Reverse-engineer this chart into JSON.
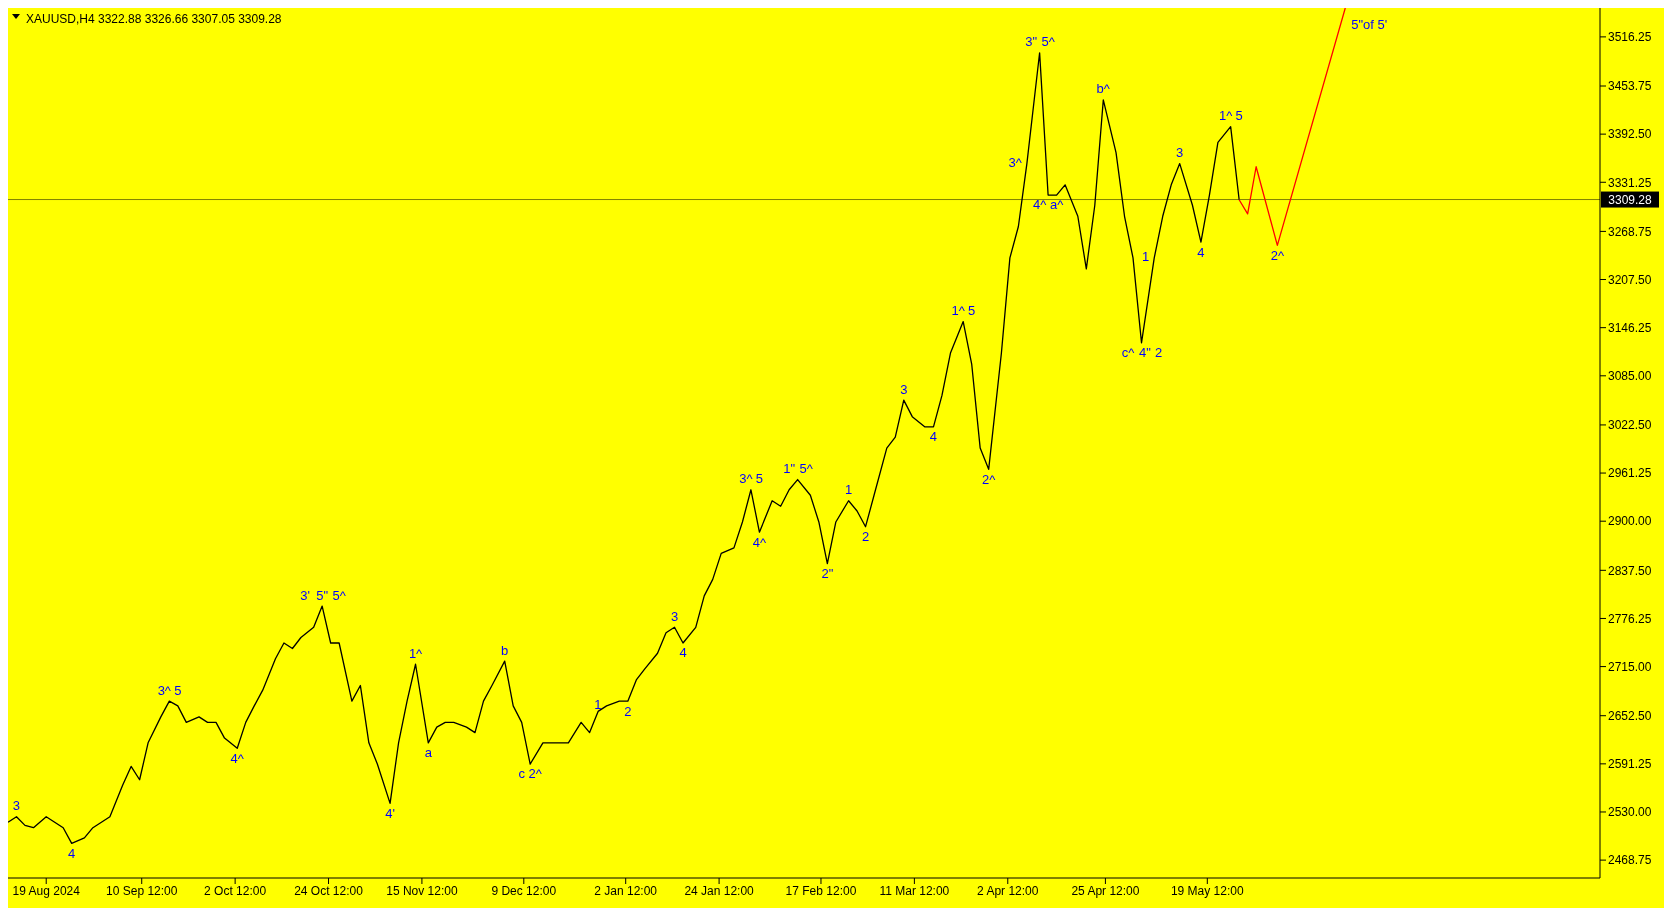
{
  "chart_data": {
    "type": "line",
    "title": "XAUUSD,H4  3322.88 3326.66 3307.05 3309.28",
    "x": [
      "2024-08-10",
      "2024-08-12",
      "2024-08-14",
      "2024-08-16",
      "2024-08-19",
      "2024-08-21",
      "2024-08-23",
      "2024-08-25",
      "2024-08-28",
      "2024-08-30",
      "2024-09-01",
      "2024-09-03",
      "2024-09-06",
      "2024-09-08",
      "2024-09-10",
      "2024-09-12",
      "2024-09-15",
      "2024-09-17",
      "2024-09-19",
      "2024-09-21",
      "2024-09-24",
      "2024-09-26",
      "2024-09-28",
      "2024-09-30",
      "2024-10-03",
      "2024-10-05",
      "2024-10-07",
      "2024-10-09",
      "2024-10-12",
      "2024-10-14",
      "2024-10-16",
      "2024-10-18",
      "2024-10-21",
      "2024-10-23",
      "2024-10-25",
      "2024-10-27",
      "2024-10-30",
      "2024-11-01",
      "2024-11-03",
      "2024-11-05",
      "2024-11-08",
      "2024-11-10",
      "2024-11-12",
      "2024-11-14",
      "2024-11-17",
      "2024-11-19",
      "2024-11-21",
      "2024-11-23",
      "2024-11-26",
      "2024-11-28",
      "2024-11-30",
      "2024-12-02",
      "2024-12-05",
      "2024-12-07",
      "2024-12-09",
      "2024-12-11",
      "2024-12-14",
      "2024-12-16",
      "2024-12-18",
      "2024-12-20",
      "2024-12-23",
      "2024-12-25",
      "2024-12-27",
      "2024-12-29",
      "2025-01-01",
      "2025-01-03",
      "2025-01-05",
      "2025-01-07",
      "2025-01-10",
      "2025-01-12",
      "2025-01-14",
      "2025-01-16",
      "2025-01-19",
      "2025-01-21",
      "2025-01-23",
      "2025-01-25",
      "2025-01-28",
      "2025-01-30",
      "2025-02-01",
      "2025-02-03",
      "2025-02-06",
      "2025-02-08",
      "2025-02-10",
      "2025-02-12",
      "2025-02-15",
      "2025-02-17",
      "2025-02-19",
      "2025-02-21",
      "2025-02-24",
      "2025-02-26",
      "2025-02-28",
      "2025-03-02",
      "2025-03-05",
      "2025-03-07",
      "2025-03-09",
      "2025-03-11",
      "2025-03-14",
      "2025-03-16",
      "2025-03-18",
      "2025-03-20",
      "2025-03-23",
      "2025-03-25",
      "2025-03-27",
      "2025-03-29",
      "2025-04-01",
      "2025-04-03",
      "2025-04-05",
      "2025-04-07",
      "2025-04-10",
      "2025-04-12",
      "2025-04-14",
      "2025-04-16",
      "2025-04-19",
      "2025-04-21",
      "2025-04-23",
      "2025-04-25",
      "2025-04-28",
      "2025-04-30",
      "2025-05-02",
      "2025-05-04",
      "2025-05-07",
      "2025-05-09",
      "2025-05-11",
      "2025-05-13",
      "2025-05-16",
      "2025-05-18",
      "2025-05-20",
      "2025-05-22",
      "2025-05-25",
      "2025-05-27"
    ],
    "series": [
      {
        "color": "#000000",
        "values": [
          2517,
          2524,
          2513,
          2510,
          2524,
          2517,
          2510,
          2490,
          2497,
          2510,
          2517,
          2524,
          2564,
          2588,
          2571,
          2618,
          2651,
          2671,
          2665,
          2644,
          2651,
          2644,
          2644,
          2624,
          2611,
          2644,
          2665,
          2685,
          2725,
          2745,
          2738,
          2752,
          2765,
          2792,
          2745,
          2745,
          2671,
          2691,
          2618,
          2591,
          2541,
          2618,
          2671,
          2718,
          2618,
          2638,
          2644,
          2644,
          2638,
          2631,
          2671,
          2691,
          2722,
          2665,
          2644,
          2591,
          2618,
          2618,
          2618,
          2618,
          2644,
          2631,
          2658,
          2665,
          2671,
          2671,
          2698,
          2712,
          2732,
          2758,
          2765,
          2745,
          2765,
          2805,
          2826,
          2859,
          2866,
          2899,
          2940,
          2886,
          2926,
          2919,
          2940,
          2953,
          2933,
          2899,
          2846,
          2899,
          2926,
          2913,
          2893,
          2933,
          2993,
          3007,
          3054,
          3033,
          3020,
          3020,
          3060,
          3114,
          3154,
          3100,
          2993,
          2966,
          3114,
          3235,
          3275,
          3355,
          3496,
          3315,
          3315,
          3328,
          3288,
          3221,
          3302,
          3436,
          3369,
          3288,
          3235,
          3127,
          3235,
          3288,
          3328,
          3355,
          3302,
          3255,
          3315,
          3382,
          3402,
          3309
        ]
      },
      {
        "color": "#ff0000",
        "x": [
          "2025-05-27",
          "2025-05-29",
          "2025-05-31",
          "2025-06-05",
          "2025-06-21"
        ],
        "values": [
          3309,
          3291,
          3351,
          3251,
          3553
        ]
      }
    ],
    "xlim": [
      "2024-08-10",
      "2025-08-20"
    ],
    "xticks": [
      {
        "value": "2024-08-19",
        "label": "19 Aug 2024"
      },
      {
        "value": "2024-09-10T12:00",
        "label": "10 Sep 12:00"
      },
      {
        "value": "2024-10-02T12:00",
        "label": "2 Oct 12:00"
      },
      {
        "value": "2024-10-24T12:00",
        "label": "24 Oct 12:00"
      },
      {
        "value": "2024-11-15T12:00",
        "label": "15 Nov 12:00"
      },
      {
        "value": "2024-12-09T12:00",
        "label": "9 Dec 12:00"
      },
      {
        "value": "2025-01-02T12:00",
        "label": "2 Jan 12:00"
      },
      {
        "value": "2025-01-24T12:00",
        "label": "24 Jan 12:00"
      },
      {
        "value": "2025-02-17T12:00",
        "label": "17 Feb 12:00"
      },
      {
        "value": "2025-03-11T12:00",
        "label": "11 Mar 12:00"
      },
      {
        "value": "2025-04-02T12:00",
        "label": "2 Apr 12:00"
      },
      {
        "value": "2025-04-25T12:00",
        "label": "25 Apr 12:00"
      },
      {
        "value": "2025-05-19T12:00",
        "label": "19 May 12:00"
      }
    ],
    "ylim": [
      2446,
      3553
    ],
    "yticks": [
      {
        "value": 2468.75,
        "label": "2468.75"
      },
      {
        "value": 2530,
        "label": "2530.00"
      },
      {
        "value": 2591.25,
        "label": "2591.25"
      },
      {
        "value": 2652.5,
        "label": "2652.50"
      },
      {
        "value": 2715,
        "label": "2715.00"
      },
      {
        "value": 2776.25,
        "label": "2776.25"
      },
      {
        "value": 2837.5,
        "label": "2837.50"
      },
      {
        "value": 2900,
        "label": "2900.00"
      },
      {
        "value": 2961.25,
        "label": "2961.25"
      },
      {
        "value": 3022.5,
        "label": "3022.50"
      },
      {
        "value": 3085,
        "label": "3085.00"
      },
      {
        "value": 3146.25,
        "label": "3146.25"
      },
      {
        "value": 3207.5,
        "label": "3207.50"
      },
      {
        "value": 3268.75,
        "label": "3268.75"
      },
      {
        "value": 3331.25,
        "label": "3331.25"
      },
      {
        "value": 3392.5,
        "label": "3392.50"
      },
      {
        "value": 3453.75,
        "label": "3453.75"
      },
      {
        "value": 3516.25,
        "label": "3516.25"
      }
    ],
    "ref_lines": [
      {
        "axis": "y",
        "value": 3309.28,
        "label": "3309.28",
        "color": "#808000"
      }
    ],
    "grid": false,
    "legend": false,
    "marker": "none",
    "line_style": "solid",
    "annotations": [
      {
        "text": "3",
        "x": "2024-08-12",
        "y": 2524
      },
      {
        "text": "4",
        "x": "2024-08-25",
        "y": 2490
      },
      {
        "text": "3^",
        "x": "2024-09-17",
        "y": 2671
      },
      {
        "text": "5",
        "x": "2024-09-17",
        "y": 2671
      },
      {
        "text": "4^",
        "x": "2024-10-03",
        "y": 2611
      },
      {
        "text": "3'",
        "x": "2024-10-23",
        "y": 2792
      },
      {
        "text": "5\"",
        "x": "2024-10-23",
        "y": 2792
      },
      {
        "text": "5^",
        "x": "2024-10-23",
        "y": 2792
      },
      {
        "text": "4'",
        "x": "2024-11-08",
        "y": 2541
      },
      {
        "text": "1^",
        "x": "2024-11-14",
        "y": 2718
      },
      {
        "text": "a",
        "x": "2024-11-17",
        "y": 2618
      },
      {
        "text": "b",
        "x": "2024-12-05",
        "y": 2722
      },
      {
        "text": "c",
        "x": "2024-12-11",
        "y": 2591
      },
      {
        "text": "2^",
        "x": "2024-12-11",
        "y": 2591
      },
      {
        "text": "1",
        "x": "2024-12-29",
        "y": 2665
      },
      {
        "text": "2",
        "x": "2025-01-03",
        "y": 2671
      },
      {
        "text": "3",
        "x": "2025-01-14",
        "y": 2765
      },
      {
        "text": "4",
        "x": "2025-01-16",
        "y": 2745
      },
      {
        "text": "3^",
        "x": "2025-02-01",
        "y": 2940
      },
      {
        "text": "5",
        "x": "2025-02-01",
        "y": 2940
      },
      {
        "text": "4^",
        "x": "2025-02-03",
        "y": 2886
      },
      {
        "text": "1\"",
        "x": "2025-02-12",
        "y": 2953
      },
      {
        "text": "5^",
        "x": "2025-02-12",
        "y": 2953
      },
      {
        "text": "2\"",
        "x": "2025-02-19",
        "y": 2846
      },
      {
        "text": "1",
        "x": "2025-02-24",
        "y": 2926
      },
      {
        "text": "2",
        "x": "2025-02-28",
        "y": 2893
      },
      {
        "text": "3",
        "x": "2025-03-09",
        "y": 3054
      },
      {
        "text": "4",
        "x": "2025-03-16",
        "y": 3020
      },
      {
        "text": "1^",
        "x": "2025-03-23",
        "y": 3154
      },
      {
        "text": "5",
        "x": "2025-03-23",
        "y": 3154
      },
      {
        "text": "2^",
        "x": "2025-03-29",
        "y": 2966
      },
      {
        "text": "3^",
        "x": "2025-04-07",
        "y": 3355
      },
      {
        "text": "3\"",
        "x": "2025-04-10",
        "y": 3496
      },
      {
        "text": "5^",
        "x": "2025-04-10",
        "y": 3496
      },
      {
        "text": "4^",
        "x": "2025-04-12",
        "y": 3315
      },
      {
        "text": "a^",
        "x": "2025-04-12",
        "y": 3315
      },
      {
        "text": "b^",
        "x": "2025-04-25",
        "y": 3436
      },
      {
        "text": "c^",
        "x": "2025-05-04",
        "y": 3127
      },
      {
        "text": "4\"",
        "x": "2025-05-04",
        "y": 3127
      },
      {
        "text": "2",
        "x": "2025-05-04",
        "y": 3127
      },
      {
        "text": "1",
        "x": "2025-05-07",
        "y": 3235
      },
      {
        "text": "3",
        "x": "2025-05-13",
        "y": 3355
      },
      {
        "text": "4",
        "x": "2025-05-18",
        "y": 3255
      },
      {
        "text": "1^",
        "x": "2025-05-25",
        "y": 3402
      },
      {
        "text": "5",
        "x": "2025-05-25",
        "y": 3402
      },
      {
        "text": "2^",
        "x": "2025-06-05",
        "y": 3251
      },
      {
        "text": "5\"of 5'",
        "x": "2025-06-21",
        "y": 3553
      }
    ]
  }
}
